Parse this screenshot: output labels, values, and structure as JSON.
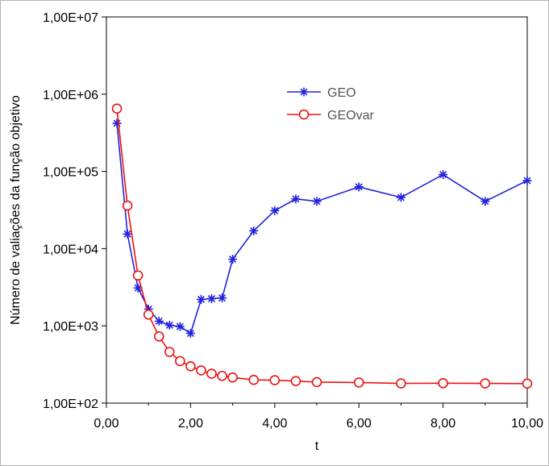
{
  "chart_data": {
    "type": "line",
    "xlabel": "t",
    "ylabel": "Número de valiações da função objetivo",
    "xlim": [
      0,
      10
    ],
    "ylim": [
      100,
      10000000
    ],
    "y_scale": "log",
    "x_tick_values": [
      0,
      2,
      4,
      6,
      8,
      10
    ],
    "x_tick_labels": [
      "0,00",
      "2,00",
      "4,00",
      "6,00",
      "8,00",
      "10,00"
    ],
    "y_tick_values": [
      100,
      1000,
      10000,
      100000,
      1000000,
      10000000
    ],
    "y_tick_labels": [
      "1,00E+02",
      "1,00E+03",
      "1,00E+04",
      "1,00E+05",
      "1,00E+06",
      "1,00E+07"
    ],
    "grid": false,
    "legend_position": "top-center",
    "series": [
      {
        "name": "GEO",
        "color": "#2222dd",
        "marker": "asterisk",
        "x": [
          0.25,
          0.5,
          0.75,
          1.0,
          1.25,
          1.5,
          1.75,
          2.0,
          2.25,
          2.5,
          2.75,
          3.0,
          3.5,
          4.0,
          4.5,
          5.0,
          6.0,
          7.0,
          8.0,
          9.0,
          10.0
        ],
        "y": [
          420000,
          15500,
          3100,
          1650,
          1150,
          1020,
          980,
          800,
          2200,
          2250,
          2300,
          7300,
          17000,
          31000,
          44000,
          41000,
          63000,
          46000,
          91000,
          41000,
          76000
        ]
      },
      {
        "name": "GEOvar",
        "color": "#ee1111",
        "marker": "circle",
        "x": [
          0.25,
          0.5,
          0.75,
          1.0,
          1.25,
          1.5,
          1.75,
          2.0,
          2.25,
          2.5,
          2.75,
          3.0,
          3.5,
          4.0,
          4.5,
          5.0,
          6.0,
          7.0,
          8.0,
          9.0,
          10.0
        ],
        "y": [
          650000,
          36000,
          4500,
          1400,
          730,
          460,
          350,
          300,
          265,
          240,
          225,
          215,
          200,
          198,
          193,
          187,
          185,
          180,
          181,
          180,
          179
        ]
      }
    ]
  }
}
